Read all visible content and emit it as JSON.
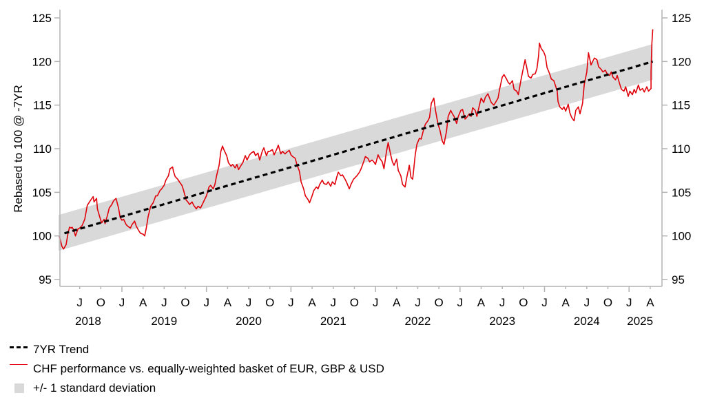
{
  "chart_data": {
    "type": "line",
    "title": "",
    "ylabel": "Rebased to 100 @ -7YR",
    "ylabel_right": "",
    "xlabel": "",
    "ylim": [
      95,
      125
    ],
    "y_ticks": [
      95,
      100,
      105,
      110,
      115,
      120,
      125
    ],
    "xlim": [
      2018.25,
      2025.32
    ],
    "grid": false,
    "legend_position": "bottom-left",
    "x_month_ticks": [
      {
        "x": 2018.5,
        "label": "J"
      },
      {
        "x": 2018.75,
        "label": "O"
      },
      {
        "x": 2019.0,
        "label": "J"
      },
      {
        "x": 2019.25,
        "label": "A"
      },
      {
        "x": 2019.5,
        "label": "J"
      },
      {
        "x": 2019.75,
        "label": "O"
      },
      {
        "x": 2020.0,
        "label": "J"
      },
      {
        "x": 2020.25,
        "label": "A"
      },
      {
        "x": 2020.5,
        "label": "J"
      },
      {
        "x": 2020.75,
        "label": "O"
      },
      {
        "x": 2021.0,
        "label": "J"
      },
      {
        "x": 2021.25,
        "label": "A"
      },
      {
        "x": 2021.5,
        "label": "J"
      },
      {
        "x": 2021.75,
        "label": "O"
      },
      {
        "x": 2022.0,
        "label": "J"
      },
      {
        "x": 2022.25,
        "label": "A"
      },
      {
        "x": 2022.5,
        "label": "J"
      },
      {
        "x": 2022.75,
        "label": "O"
      },
      {
        "x": 2023.0,
        "label": "J"
      },
      {
        "x": 2023.25,
        "label": "A"
      },
      {
        "x": 2023.5,
        "label": "J"
      },
      {
        "x": 2023.75,
        "label": "O"
      },
      {
        "x": 2024.0,
        "label": "J"
      },
      {
        "x": 2024.25,
        "label": "A"
      },
      {
        "x": 2024.5,
        "label": "J"
      },
      {
        "x": 2024.75,
        "label": "O"
      },
      {
        "x": 2025.0,
        "label": "J"
      },
      {
        "x": 2025.25,
        "label": "A"
      }
    ],
    "x_year_labels": [
      {
        "x": 2018.6,
        "label": "2018"
      },
      {
        "x": 2019.5,
        "label": "2019"
      },
      {
        "x": 2020.5,
        "label": "2020"
      },
      {
        "x": 2021.5,
        "label": "2021"
      },
      {
        "x": 2022.5,
        "label": "2022"
      },
      {
        "x": 2023.5,
        "label": "2023"
      },
      {
        "x": 2024.5,
        "label": "2024"
      },
      {
        "x": 2025.13,
        "label": "2025"
      }
    ],
    "x_major_ticks": [
      2019,
      2020,
      2021,
      2022,
      2023,
      2024,
      2025
    ],
    "series": [
      {
        "name": "7YR Trend",
        "style": "dashed",
        "color": "#000000",
        "x": [
          2018.32,
          2025.28
        ],
        "values": [
          100.3,
          120.0
        ]
      },
      {
        "name": "+/- 1 standard deviation",
        "style": "band",
        "color": "#d9d9d9",
        "x": [
          2018.25,
          2025.28
        ],
        "upper": [
          102.4,
          122.0
        ],
        "lower": [
          98.3,
          117.9
        ]
      },
      {
        "name": "CHF performance vs. equally-weighted basket of EUR, GBP & USD",
        "style": "solid",
        "color": "#e0000a",
        "x": [
          2018.26,
          2018.29,
          2018.31,
          2018.34,
          2018.36,
          2018.38,
          2018.4,
          2018.41,
          2018.43,
          2018.45,
          2018.48,
          2018.5,
          2018.53,
          2018.56,
          2018.59,
          2018.63,
          2018.66,
          2018.67,
          2018.7,
          2018.71,
          2018.74,
          2018.76,
          2018.79,
          2018.8,
          2018.83,
          2018.85,
          2018.88,
          2018.9,
          2018.93,
          2018.96,
          2018.98,
          2019.0,
          2019.02,
          2019.05,
          2019.07,
          2019.1,
          2019.12,
          2019.15,
          2019.17,
          2019.2,
          2019.22,
          2019.25,
          2019.27,
          2019.29,
          2019.31,
          2019.34,
          2019.37,
          2019.4,
          2019.42,
          2019.45,
          2019.47,
          2019.5,
          2019.52,
          2019.55,
          2019.57,
          2019.6,
          2019.61,
          2019.63,
          2019.66,
          2019.68,
          2019.71,
          2019.73,
          2019.76,
          2019.78,
          2019.8,
          2019.83,
          2019.85,
          2019.88,
          2019.9,
          2019.93,
          2019.95,
          2019.98,
          2020.0,
          2020.03,
          2020.05,
          2020.08,
          2020.1,
          2020.12,
          2020.15,
          2020.17,
          2020.19,
          2020.21,
          2020.24,
          2020.26,
          2020.29,
          2020.31,
          2020.34,
          2020.36,
          2020.38,
          2020.41,
          2020.43,
          2020.46,
          2020.48,
          2020.51,
          2020.53,
          2020.56,
          2020.58,
          2020.61,
          2020.63,
          2020.66,
          2020.68,
          2020.71,
          2020.73,
          2020.75,
          2020.78,
          2020.8,
          2020.83,
          2020.85,
          2020.88,
          2020.9,
          2020.93,
          2020.95,
          2020.98,
          2021.0,
          2021.02,
          2021.05,
          2021.07,
          2021.1,
          2021.12,
          2021.15,
          2021.17,
          2021.2,
          2021.22,
          2021.25,
          2021.27,
          2021.3,
          2021.32,
          2021.34,
          2021.37,
          2021.39,
          2021.42,
          2021.44,
          2021.47,
          2021.49,
          2021.52,
          2021.54,
          2021.56,
          2021.59,
          2021.61,
          2021.64,
          2021.66,
          2021.69,
          2021.71,
          2021.74,
          2021.76,
          2021.78,
          2021.81,
          2021.83,
          2021.86,
          2021.88,
          2021.91,
          2021.93,
          2021.96,
          2021.98,
          2022.0,
          2022.03,
          2022.05,
          2022.08,
          2022.1,
          2022.13,
          2022.15,
          2022.18,
          2022.2,
          2022.22,
          2022.25,
          2022.27,
          2022.3,
          2022.32,
          2022.35,
          2022.37,
          2022.4,
          2022.42,
          2022.44,
          2022.47,
          2022.49,
          2022.52,
          2022.54,
          2022.57,
          2022.59,
          2022.62,
          2022.64,
          2022.66,
          2022.69,
          2022.71,
          2022.74,
          2022.76,
          2022.79,
          2022.81,
          2022.84,
          2022.86,
          2022.89,
          2022.91,
          2022.93,
          2022.96,
          2022.98,
          2023.01,
          2023.03,
          2023.06,
          2023.08,
          2023.11,
          2023.13,
          2023.15,
          2023.18,
          2023.2,
          2023.23,
          2023.25,
          2023.28,
          2023.3,
          2023.33,
          2023.35,
          2023.37,
          2023.4,
          2023.42,
          2023.45,
          2023.47,
          2023.5,
          2023.52,
          2023.55,
          2023.57,
          2023.59,
          2023.62,
          2023.64,
          2023.67,
          2023.69,
          2023.72,
          2023.74,
          2023.77,
          2023.79,
          2023.81,
          2023.84,
          2023.86,
          2023.89,
          2023.91,
          2023.93,
          2023.94,
          2023.96,
          2023.99,
          2024.01,
          2024.03,
          2024.06,
          2024.08,
          2024.11,
          2024.13,
          2024.15,
          2024.16,
          2024.18,
          2024.21,
          2024.23,
          2024.25,
          2024.28,
          2024.3,
          2024.32,
          2024.35,
          2024.37,
          2024.4,
          2024.42,
          2024.45,
          2024.47,
          2024.5,
          2024.52,
          2024.55,
          2024.57,
          2024.59,
          2024.62,
          2024.64,
          2024.67,
          2024.69,
          2024.72,
          2024.74,
          2024.77,
          2024.79,
          2024.81,
          2024.84,
          2024.86,
          2024.89,
          2024.91,
          2024.94,
          2024.96,
          2024.99,
          2025.01,
          2025.04,
          2025.06,
          2025.08,
          2025.11,
          2025.13,
          2025.16,
          2025.18,
          2025.21,
          2025.23,
          2025.26,
          2025.26,
          2025.27,
          2025.28
        ],
        "values": [
          100.0,
          98.8,
          98.5,
          99.0,
          100.2,
          101.0,
          100.9,
          101.0,
          100.7,
          100.0,
          100.8,
          100.9,
          101.2,
          101.9,
          103.5,
          104.1,
          104.5,
          103.9,
          104.3,
          103.1,
          102.1,
          101.5,
          101.9,
          101.4,
          102.4,
          103.2,
          103.6,
          104.0,
          104.3,
          103.2,
          102.1,
          101.8,
          101.9,
          101.3,
          101.1,
          100.9,
          101.3,
          101.7,
          101.1,
          100.6,
          100.3,
          100.2,
          100.0,
          101.0,
          102.2,
          103.4,
          103.8,
          104.6,
          104.6,
          105.2,
          105.4,
          105.8,
          106.4,
          106.9,
          107.7,
          107.9,
          107.4,
          106.8,
          106.5,
          106.2,
          105.8,
          105.2,
          104.1,
          103.9,
          103.6,
          103.9,
          103.5,
          103.1,
          103.4,
          103.2,
          103.6,
          104.2,
          104.6,
          105.6,
          105.8,
          105.4,
          105.9,
          106.9,
          108.1,
          109.7,
          110.3,
          109.8,
          109.2,
          108.4,
          108.0,
          108.2,
          107.8,
          108.2,
          107.6,
          108.1,
          108.4,
          109.2,
          108.7,
          109.3,
          109.5,
          109.7,
          109.2,
          109.5,
          108.7,
          109.7,
          110.1,
          109.2,
          109.7,
          109.7,
          109.9,
          109.3,
          109.9,
          110.4,
          109.4,
          109.7,
          109.4,
          109.6,
          109.8,
          109.3,
          109.1,
          108.9,
          108.2,
          107.4,
          106.2,
          105.4,
          104.6,
          104.2,
          103.8,
          104.6,
          105.2,
          105.6,
          105.4,
          105.9,
          106.4,
          106.0,
          105.9,
          106.2,
          105.7,
          106.2,
          105.9,
          106.7,
          107.3,
          106.9,
          107.0,
          106.5,
          106.1,
          105.4,
          105.9,
          106.5,
          106.7,
          106.9,
          107.3,
          107.7,
          108.5,
          109.1,
          108.9,
          108.5,
          108.7,
          108.5,
          108.2,
          109.3,
          108.9,
          108.5,
          107.7,
          109.7,
          110.7,
          109.3,
          108.5,
          108.1,
          108.8,
          107.5,
          106.9,
          105.9,
          105.6,
          106.7,
          108.1,
          106.7,
          106.5,
          109.3,
          110.5,
          111.2,
          111.1,
          112.2,
          112.8,
          113.2,
          113.6,
          115.2,
          115.8,
          114.4,
          112.8,
          112.2,
          110.9,
          110.5,
          112.0,
          113.7,
          114.4,
          114.0,
          113.7,
          112.9,
          113.7,
          114.4,
          114.5,
          113.4,
          113.6,
          114.0,
          113.7,
          114.7,
          114.4,
          113.7,
          115.0,
          115.8,
          115.3,
          115.9,
          116.3,
          115.8,
          115.3,
          115.0,
          115.3,
          115.8,
          116.9,
          118.2,
          118.5,
          118.0,
          117.6,
          117.4,
          117.8,
          116.8,
          116.6,
          116.2,
          117.8,
          118.8,
          120.2,
          119.3,
          118.3,
          118.1,
          118.5,
          118.6,
          119.2,
          120.7,
          122.1,
          121.5,
          121.1,
          120.6,
          119.3,
          118.6,
          118.0,
          117.8,
          117.2,
          116.6,
          115.4,
          114.8,
          114.5,
          114.8,
          114.3,
          115.1,
          114.1,
          113.6,
          113.2,
          114.4,
          114.8,
          114.0,
          115.2,
          117.4,
          118.8,
          121.0,
          119.6,
          120.0,
          120.4,
          120.2,
          119.4,
          119.1,
          118.8,
          119.0,
          118.6,
          118.4,
          118.8,
          118.2,
          117.9,
          118.4,
          117.4,
          116.8,
          116.6,
          117.1,
          116.0,
          116.6,
          116.2,
          116.8,
          116.4,
          117.3,
          116.7,
          116.9,
          116.5,
          117.1,
          116.6,
          116.9,
          118.8,
          122.0,
          123.7
        ]
      }
    ]
  },
  "legend": {
    "items": [
      {
        "label": "7YR Trend"
      },
      {
        "label": "CHF performance vs. equally-weighted basket of EUR, GBP & USD"
      },
      {
        "label": "+/- 1 standard deviation"
      }
    ]
  }
}
